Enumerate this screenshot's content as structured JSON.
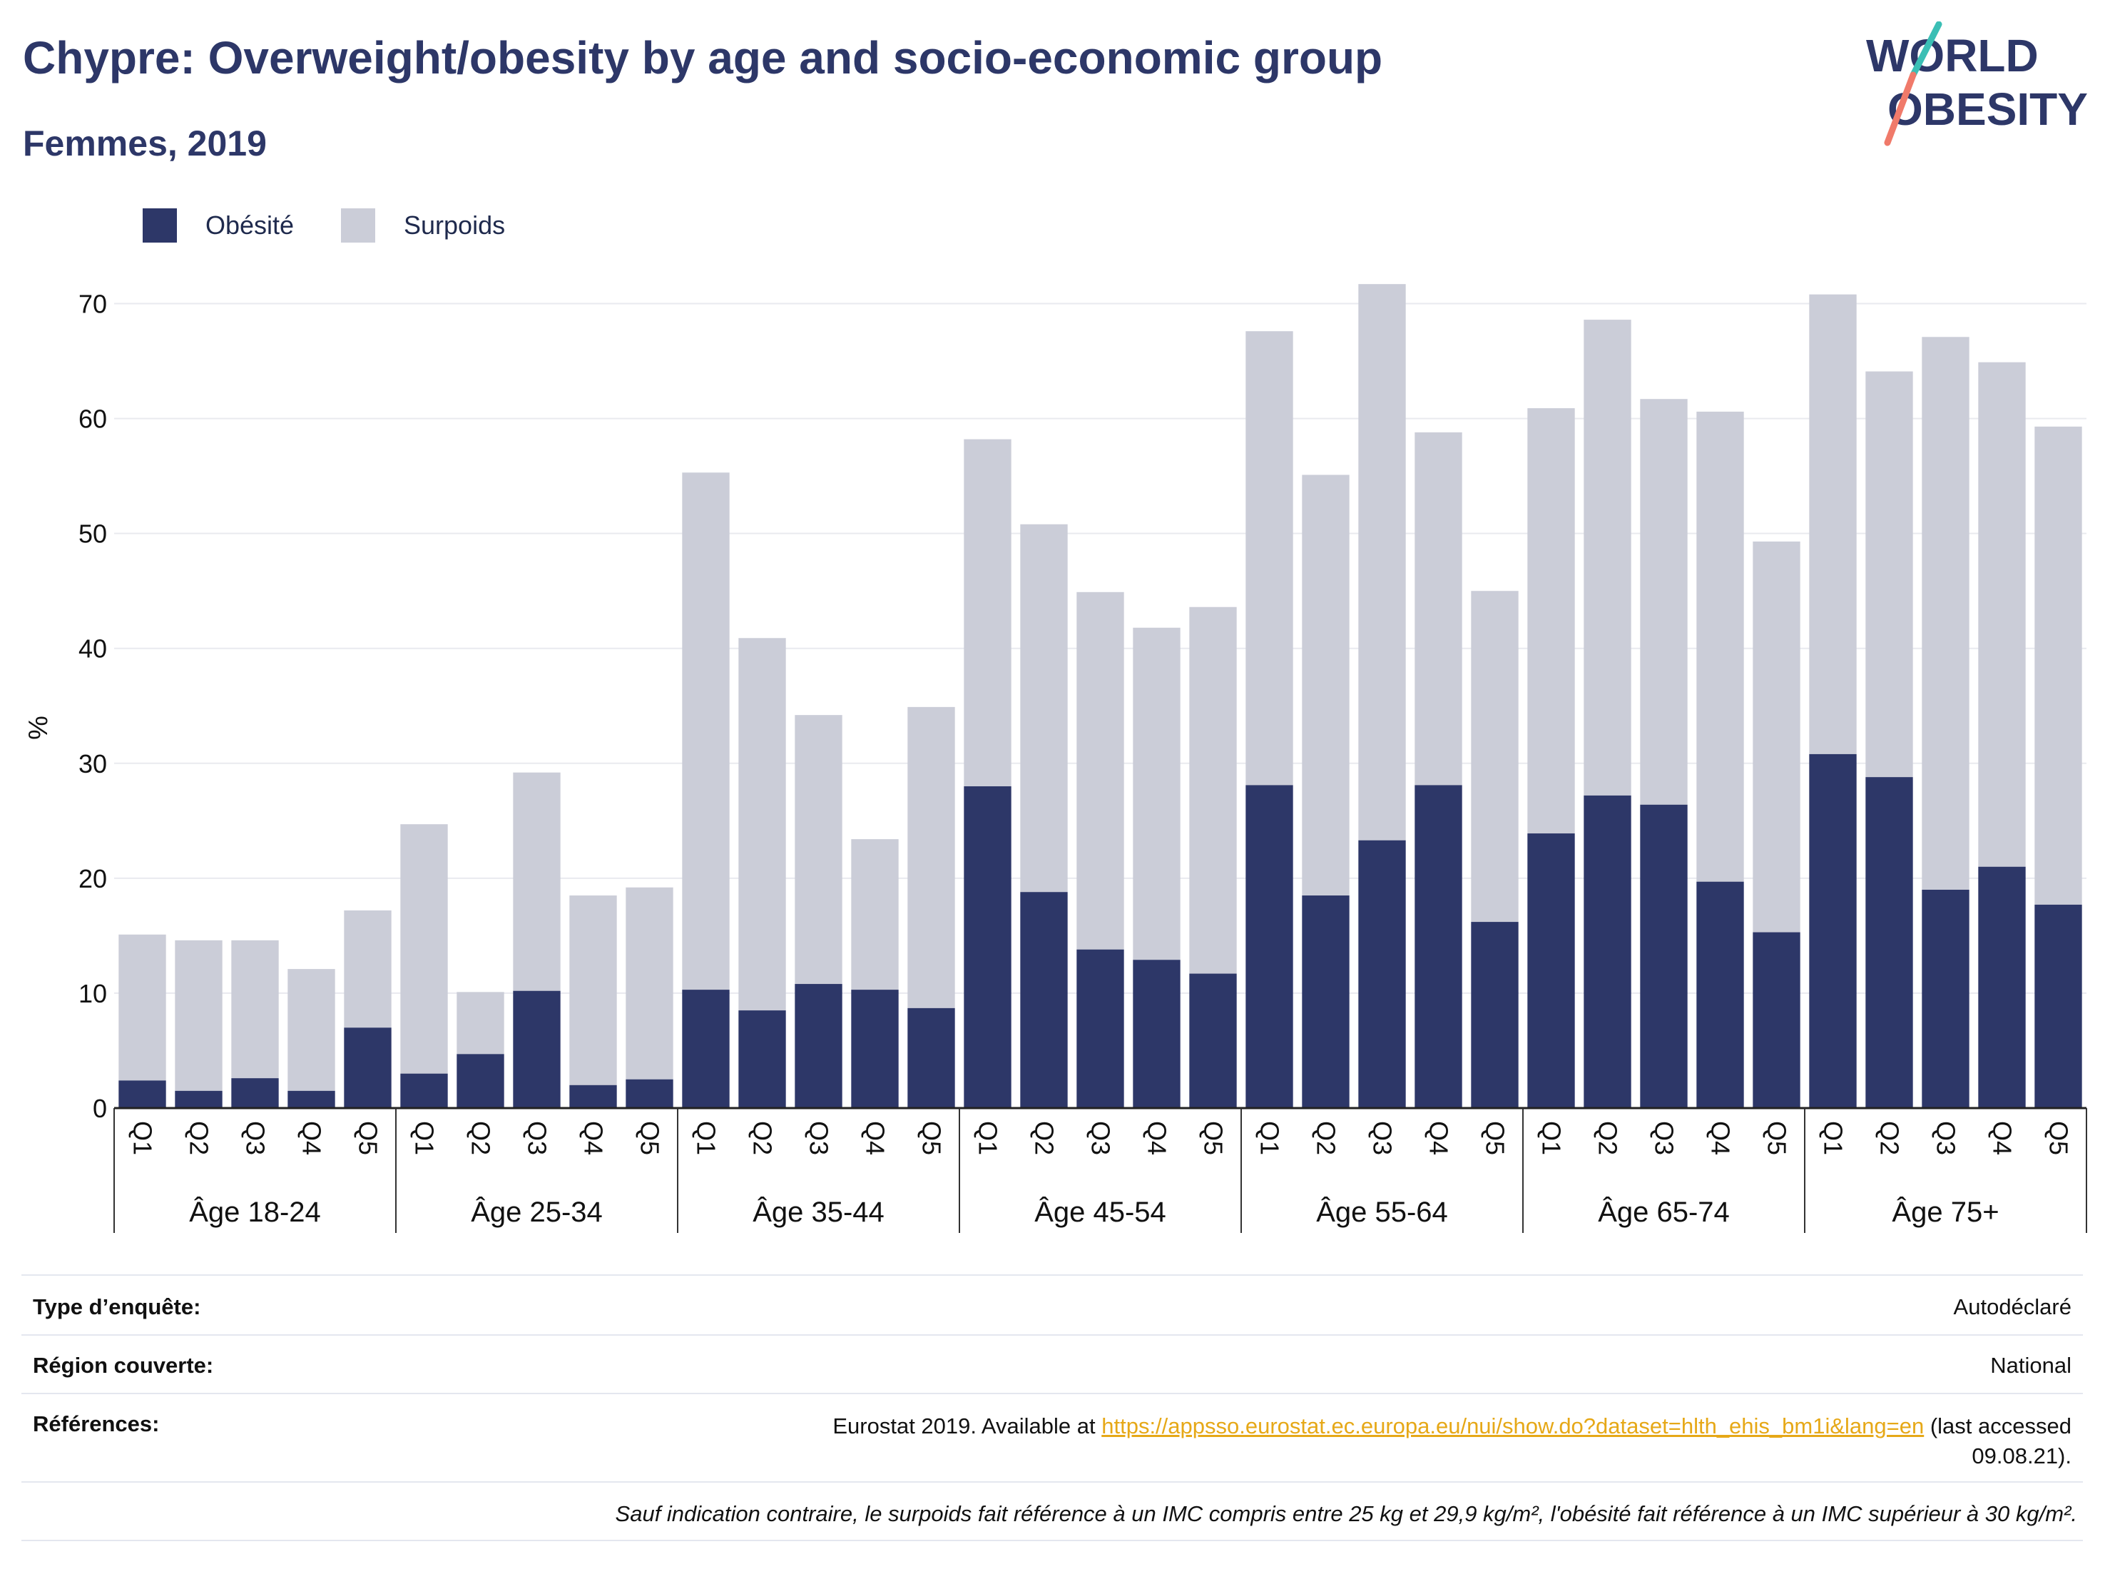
{
  "header": {
    "title": "Chypre: Overweight/obesity by age and socio-economic group",
    "subtitle": "Femmes, 2019",
    "logo_line1": "WORLD",
    "logo_line2": "OBESITY"
  },
  "legend": {
    "obesity_label": "Obésité",
    "overweight_label": "Surpoids"
  },
  "colors": {
    "obesity": "#2d3768",
    "overweight": "#cbcdd8",
    "title": "#2d3768",
    "link": "#e6a817",
    "logo_teal": "#3bbfb5",
    "logo_coral": "#f07a6a"
  },
  "chart_data": {
    "type": "bar",
    "stacked": true,
    "ylabel": "%",
    "ylim": [
      0,
      75
    ],
    "yticks": [
      0,
      10,
      20,
      30,
      40,
      50,
      60,
      70
    ],
    "grid": true,
    "legend_position": "top-left",
    "groups": [
      "Âge 18-24",
      "Âge 25-34",
      "Âge 35-44",
      "Âge 45-54",
      "Âge 55-64",
      "Âge 65-74",
      "Âge 75+"
    ],
    "categories": [
      "Q1",
      "Q2",
      "Q3",
      "Q4",
      "Q5"
    ],
    "series": [
      {
        "name": "Obésité",
        "values": [
          [
            2.4,
            1.5,
            2.6,
            1.5,
            7.0
          ],
          [
            3.0,
            4.7,
            10.2,
            2.0,
            2.5
          ],
          [
            10.3,
            8.5,
            10.8,
            10.3,
            8.7
          ],
          [
            28.0,
            18.8,
            13.8,
            12.9,
            11.7
          ],
          [
            28.1,
            18.5,
            23.3,
            28.1,
            16.2
          ],
          [
            23.9,
            27.2,
            26.4,
            19.7,
            15.3
          ],
          [
            30.8,
            28.8,
            19.0,
            21.0,
            17.7
          ]
        ]
      },
      {
        "name": "Surpoids",
        "values": [
          [
            12.7,
            13.1,
            12.0,
            10.6,
            10.2
          ],
          [
            21.7,
            5.4,
            19.0,
            16.5,
            16.7
          ],
          [
            45.0,
            32.4,
            23.4,
            13.1,
            26.2
          ],
          [
            30.2,
            32.0,
            31.1,
            28.9,
            31.9
          ],
          [
            39.5,
            36.6,
            48.4,
            30.7,
            28.8
          ],
          [
            37.0,
            41.4,
            35.3,
            40.9,
            34.0
          ],
          [
            40.0,
            35.3,
            48.1,
            43.9,
            41.6
          ]
        ]
      }
    ]
  },
  "info": {
    "survey_type_label": "Type d’enquête:",
    "survey_type_value": "Autodéclaré",
    "region_label": "Région couverte:",
    "region_value": "National",
    "references_label": "Références:",
    "references_prefix": "Eurostat 2019. Available at ",
    "references_link": "https://appsso.eurostat.ec.europa.eu/nui/show.do?dataset=hlth_ehis_bm1i&lang=en",
    "references_suffix": " (last accessed",
    "references_date": "09.08.21).",
    "footnote": "Sauf indication contraire, le surpoids fait référence à un IMC compris entre 25 kg et 29,9 kg/m², l'obésité fait référence à un IMC supérieur à 30 kg/m²."
  }
}
